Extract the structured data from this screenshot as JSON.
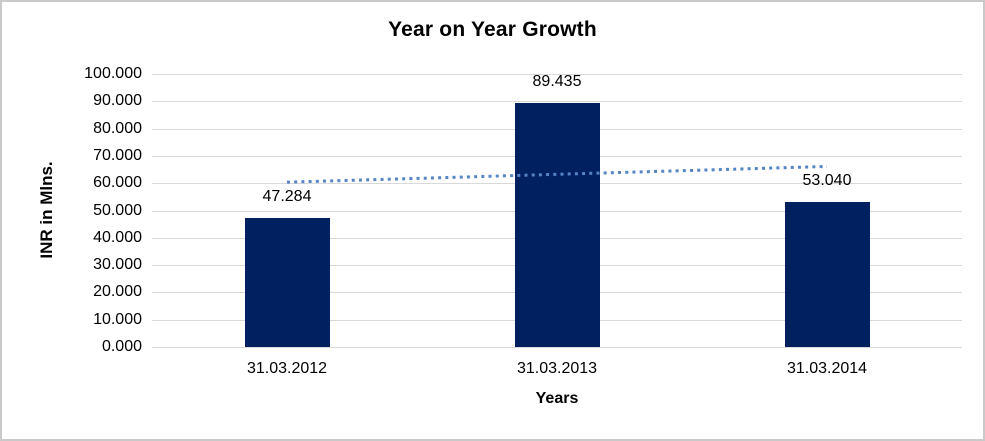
{
  "chart_data": {
    "type": "bar",
    "title": "Year on Year Growth",
    "xlabel": "Years",
    "ylabel": "INR in Mlns.",
    "categories": [
      "31.03.2012",
      "31.03.2013",
      "31.03.2014"
    ],
    "series": [
      {
        "name": "INR in Mlns.",
        "values": [
          47.284,
          89.435,
          53.04
        ]
      }
    ],
    "data_labels": [
      "47.284",
      "89.435",
      "53.040"
    ],
    "ylim": [
      0,
      100
    ],
    "ytick_step": 10,
    "ytick_labels": [
      "0.000",
      "10.000",
      "20.000",
      "30.000",
      "40.000",
      "50.000",
      "60.000",
      "70.000",
      "80.000",
      "90.000",
      "100.000"
    ],
    "grid": true,
    "legend": "none",
    "trendline": {
      "type": "linear",
      "style": "dotted",
      "start_value": 60.375,
      "end_value": 66.131,
      "color": "#5585C5"
    },
    "colors": {
      "bar": "#002060",
      "gridline": "#D9D9D9",
      "axis_line": "#D9D9D9",
      "text": "#000000",
      "border": "#C9C9C9"
    }
  }
}
